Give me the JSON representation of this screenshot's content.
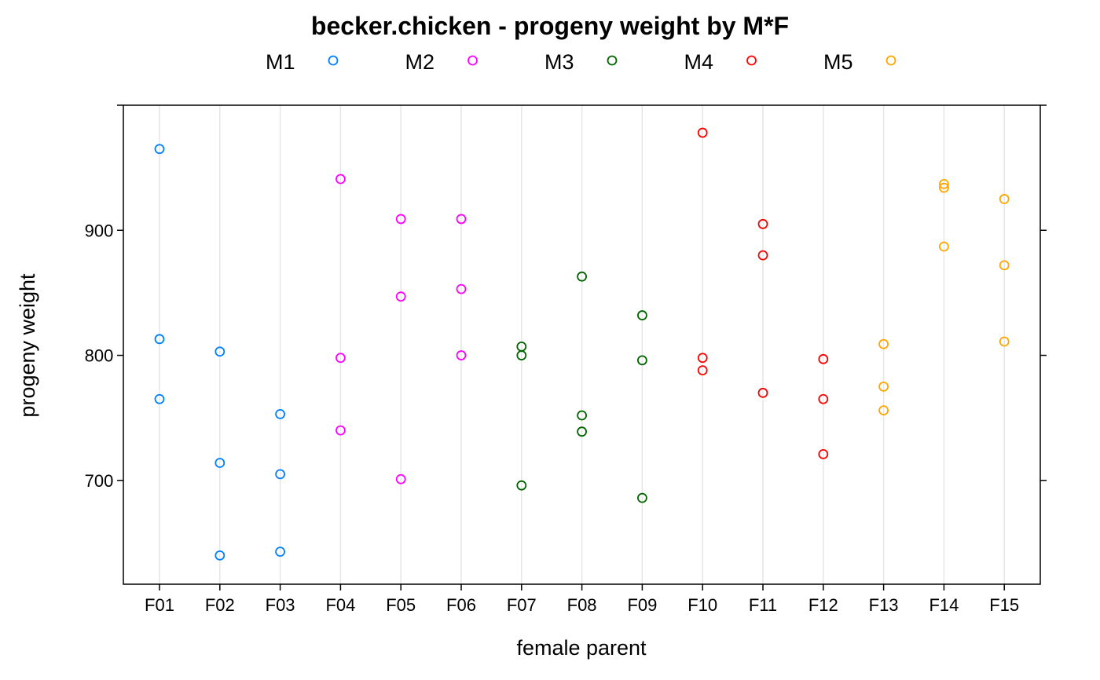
{
  "chart_data": {
    "type": "scatter",
    "title": "becker.chicken - progeny weight by M*F",
    "xlabel": "female parent",
    "ylabel": "progeny weight",
    "categories": [
      "F01",
      "F02",
      "F03",
      "F04",
      "F05",
      "F06",
      "F07",
      "F08",
      "F09",
      "F10",
      "F11",
      "F12",
      "F13",
      "F14",
      "F15"
    ],
    "ylim": [
      617,
      1000
    ],
    "yticks": [
      700,
      800,
      900
    ],
    "grid": "vertical",
    "legend_position": "top",
    "series": [
      {
        "name": "M1",
        "color": "#0080ff",
        "points": [
          [
            "F01",
            965
          ],
          [
            "F01",
            813
          ],
          [
            "F01",
            765
          ],
          [
            "F02",
            803
          ],
          [
            "F02",
            714
          ],
          [
            "F02",
            640
          ],
          [
            "F03",
            753
          ],
          [
            "F03",
            705
          ],
          [
            "F03",
            643
          ]
        ]
      },
      {
        "name": "M2",
        "color": "#ff00ff",
        "points": [
          [
            "F04",
            941
          ],
          [
            "F04",
            798
          ],
          [
            "F04",
            740
          ],
          [
            "F05",
            909
          ],
          [
            "F05",
            847
          ],
          [
            "F05",
            701
          ],
          [
            "F06",
            909
          ],
          [
            "F06",
            853
          ],
          [
            "F06",
            800
          ]
        ]
      },
      {
        "name": "M3",
        "color": "#006400",
        "points": [
          [
            "F07",
            807
          ],
          [
            "F07",
            800
          ],
          [
            "F07",
            696
          ],
          [
            "F08",
            863
          ],
          [
            "F08",
            752
          ],
          [
            "F08",
            739
          ],
          [
            "F09",
            832
          ],
          [
            "F09",
            796
          ],
          [
            "F09",
            686
          ]
        ]
      },
      {
        "name": "M4",
        "color": "#ff0000",
        "points": [
          [
            "F10",
            978
          ],
          [
            "F10",
            798
          ],
          [
            "F10",
            788
          ],
          [
            "F11",
            905
          ],
          [
            "F11",
            880
          ],
          [
            "F11",
            770
          ],
          [
            "F12",
            797
          ],
          [
            "F12",
            765
          ],
          [
            "F12",
            721
          ]
        ]
      },
      {
        "name": "M5",
        "color": "#ffa500",
        "points": [
          [
            "F13",
            809
          ],
          [
            "F13",
            775
          ],
          [
            "F13",
            756
          ],
          [
            "F14",
            937
          ],
          [
            "F14",
            934
          ],
          [
            "F14",
            887
          ],
          [
            "F15",
            925
          ],
          [
            "F15",
            872
          ],
          [
            "F15",
            811
          ]
        ]
      }
    ]
  }
}
